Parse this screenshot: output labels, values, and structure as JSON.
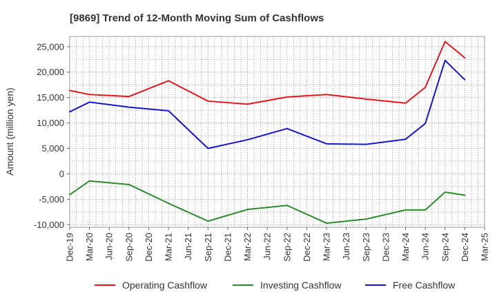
{
  "chart_data": {
    "type": "line",
    "title": "[9869]  Trend of 12-Month Moving Sum of Cashflows",
    "ylabel": "Amount (million yen)",
    "xlabel": "",
    "ylim": [
      -10500,
      27000
    ],
    "yticks": [
      -10000,
      -5000,
      0,
      5000,
      10000,
      15000,
      20000,
      25000
    ],
    "ytick_labels": [
      "-10,000",
      "-5,000",
      "0",
      "5,000",
      "10,000",
      "15,000",
      "20,000",
      "25,000"
    ],
    "x_tick_labels": [
      "Dec-19",
      "Mar-20",
      "Jun-20",
      "Sep-20",
      "Dec-20",
      "Mar-21",
      "Jun-21",
      "Sep-21",
      "Dec-21",
      "Mar-22",
      "Jun-22",
      "Sep-22",
      "Dec-22",
      "Mar-23",
      "Jun-23",
      "Sep-23",
      "Dec-23",
      "Mar-24",
      "Jun-24",
      "Sep-24",
      "Dec-24",
      "Mar-25"
    ],
    "grid": true,
    "legend_position": "bottom",
    "series": [
      {
        "name": "Operating Cashflow",
        "color": "#e8141b",
        "points": [
          {
            "x": "Dec-19",
            "y": 16400
          },
          {
            "x": "Mar-20",
            "y": 15600
          },
          {
            "x": "Sep-20",
            "y": 15200
          },
          {
            "x": "Mar-21",
            "y": 18300
          },
          {
            "x": "Sep-21",
            "y": 14300
          },
          {
            "x": "Mar-22",
            "y": 13700
          },
          {
            "x": "Sep-22",
            "y": 15100
          },
          {
            "x": "Mar-23",
            "y": 15600
          },
          {
            "x": "Sep-23",
            "y": 14700
          },
          {
            "x": "Mar-24",
            "y": 13900
          },
          {
            "x": "Jun-24",
            "y": 17000
          },
          {
            "x": "Sep-24",
            "y": 26000
          },
          {
            "x": "Dec-24",
            "y": 22800
          }
        ]
      },
      {
        "name": "Investing Cashflow",
        "color": "#2a8a2a",
        "points": [
          {
            "x": "Dec-19",
            "y": -4100
          },
          {
            "x": "Mar-20",
            "y": -1400
          },
          {
            "x": "Sep-20",
            "y": -2100
          },
          {
            "x": "Mar-21",
            "y": -5800
          },
          {
            "x": "Sep-21",
            "y": -9300
          },
          {
            "x": "Mar-22",
            "y": -7000
          },
          {
            "x": "Sep-22",
            "y": -6200
          },
          {
            "x": "Mar-23",
            "y": -9700
          },
          {
            "x": "Sep-23",
            "y": -8900
          },
          {
            "x": "Mar-24",
            "y": -7100
          },
          {
            "x": "Jun-24",
            "y": -7100
          },
          {
            "x": "Sep-24",
            "y": -3600
          },
          {
            "x": "Dec-24",
            "y": -4200
          }
        ]
      },
      {
        "name": "Free Cashflow",
        "color": "#1414d2",
        "points": [
          {
            "x": "Dec-19",
            "y": 12200
          },
          {
            "x": "Mar-20",
            "y": 14100
          },
          {
            "x": "Sep-20",
            "y": 13100
          },
          {
            "x": "Mar-21",
            "y": 12400
          },
          {
            "x": "Sep-21",
            "y": 5000
          },
          {
            "x": "Mar-22",
            "y": 6700
          },
          {
            "x": "Sep-22",
            "y": 8900
          },
          {
            "x": "Mar-23",
            "y": 5900
          },
          {
            "x": "Sep-23",
            "y": 5800
          },
          {
            "x": "Mar-24",
            "y": 6800
          },
          {
            "x": "Jun-24",
            "y": 9900
          },
          {
            "x": "Sep-24",
            "y": 22300
          },
          {
            "x": "Dec-24",
            "y": 18500
          }
        ]
      }
    ]
  }
}
